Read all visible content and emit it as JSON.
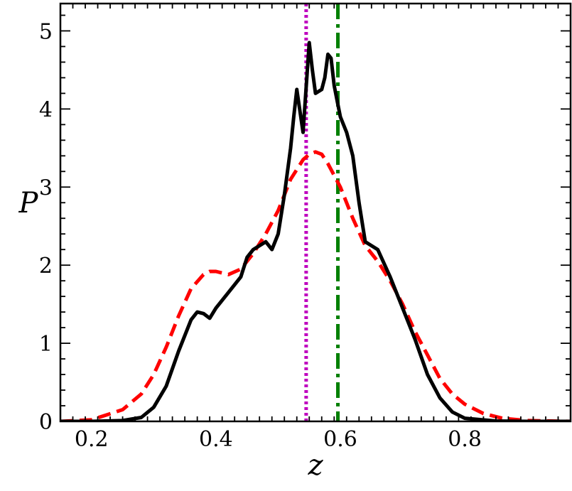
{
  "chart_data": {
    "type": "line",
    "title": "",
    "xlabel": "z",
    "ylabel": "P",
    "xlim": [
      0.15,
      0.97
    ],
    "ylim": [
      0,
      5.35
    ],
    "xticks": [
      0.2,
      0.4,
      0.6,
      0.8
    ],
    "xtick_labels": [
      "0.2",
      "0.4",
      "0.6",
      "0.8"
    ],
    "yticks": [
      0,
      1,
      2,
      3,
      4,
      5
    ],
    "ytick_labels": [
      "0",
      "1",
      "2",
      "3",
      "4",
      "5"
    ],
    "grid": false,
    "colors": {
      "solid": "#000000",
      "dashed": "#ff0000",
      "dotted": "#bf00bf",
      "dashdot": "#008000"
    },
    "series": [
      {
        "style": "solid",
        "x": [
          0.15,
          0.2,
          0.25,
          0.28,
          0.3,
          0.32,
          0.34,
          0.36,
          0.37,
          0.38,
          0.39,
          0.4,
          0.42,
          0.44,
          0.45,
          0.46,
          0.48,
          0.49,
          0.5,
          0.51,
          0.52,
          0.525,
          0.53,
          0.54,
          0.55,
          0.555,
          0.56,
          0.57,
          0.575,
          0.58,
          0.585,
          0.59,
          0.595,
          0.6,
          0.61,
          0.62,
          0.63,
          0.64,
          0.66,
          0.68,
          0.7,
          0.72,
          0.74,
          0.76,
          0.78,
          0.8,
          0.85,
          0.9,
          0.97
        ],
        "y": [
          0,
          0,
          0.01,
          0.05,
          0.18,
          0.45,
          0.9,
          1.3,
          1.4,
          1.38,
          1.32,
          1.45,
          1.65,
          1.85,
          2.1,
          2.2,
          2.3,
          2.2,
          2.4,
          2.9,
          3.5,
          3.9,
          4.25,
          3.7,
          4.85,
          4.5,
          4.2,
          4.25,
          4.4,
          4.7,
          4.65,
          4.3,
          4.1,
          3.9,
          3.7,
          3.4,
          2.8,
          2.3,
          2.2,
          1.85,
          1.45,
          1.05,
          0.6,
          0.3,
          0.12,
          0.04,
          0.005,
          0,
          0
        ]
      },
      {
        "style": "dashed",
        "x": [
          0.15,
          0.2,
          0.25,
          0.28,
          0.3,
          0.32,
          0.34,
          0.36,
          0.38,
          0.39,
          0.4,
          0.41,
          0.42,
          0.44,
          0.46,
          0.48,
          0.5,
          0.52,
          0.54,
          0.55,
          0.56,
          0.57,
          0.58,
          0.6,
          0.62,
          0.64,
          0.66,
          0.68,
          0.7,
          0.72,
          0.74,
          0.76,
          0.78,
          0.8,
          0.83,
          0.86,
          0.9,
          0.97
        ],
        "y": [
          0,
          0.02,
          0.15,
          0.35,
          0.6,
          0.95,
          1.35,
          1.7,
          1.88,
          1.92,
          1.92,
          1.9,
          1.88,
          1.95,
          2.15,
          2.4,
          2.7,
          3.1,
          3.35,
          3.42,
          3.45,
          3.42,
          3.3,
          3.0,
          2.6,
          2.25,
          2.05,
          1.8,
          1.5,
          1.15,
          0.85,
          0.55,
          0.35,
          0.22,
          0.1,
          0.04,
          0.01,
          0
        ]
      }
    ],
    "vlines": [
      {
        "style": "dotted",
        "x": 0.545
      },
      {
        "style": "dashdot",
        "x": 0.596
      }
    ]
  }
}
